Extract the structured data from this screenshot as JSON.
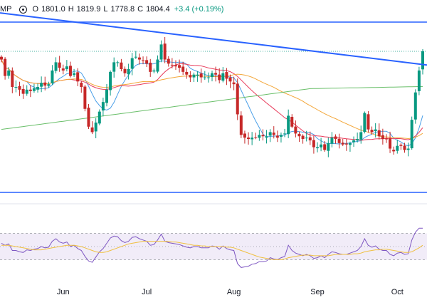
{
  "legend": {
    "symbol": "MP",
    "open_label": "O",
    "open": "1801.0",
    "high_label": "H",
    "high": "1819.9",
    "low_label": "L",
    "low": "1778.8",
    "close_label": "C",
    "close": "1804.4",
    "change": "+3.4 (+0.19%)"
  },
  "colors": {
    "up": "#089981",
    "down": "#c62828",
    "trendline": "#2962ff",
    "ma_fast": "#4a9fe8",
    "ma_mid": "#e83a5a",
    "ma_slow": "#f3a73a",
    "ma_long": "#6abf6a",
    "rsi": "#7e57c2",
    "rsi_ma": "#f0c040",
    "rsi_band": "#ede7f6"
  },
  "chart_data": [
    {
      "type": "candlestick",
      "y_scale": "price",
      "ylim": [
        1700,
        1830
      ],
      "x_labels": [
        "Jun",
        "Jul",
        "Aug",
        "Sep",
        "Oct"
      ],
      "last_candle": {
        "open": 1801.0,
        "high": 1819.9,
        "low": 1778.8,
        "close": 1804.4
      },
      "closes": [
        1798,
        1786,
        1790,
        1778,
        1778,
        1776,
        1773,
        1776,
        1775,
        1777,
        1778,
        1781,
        1779,
        1780,
        1790,
        1796,
        1792,
        1790,
        1793,
        1786,
        1788,
        1782,
        1778,
        1762,
        1749,
        1745,
        1752,
        1760,
        1767,
        1776,
        1789,
        1796,
        1796,
        1791,
        1788,
        1791,
        1799,
        1800,
        1798,
        1797,
        1795,
        1789,
        1790,
        1798,
        1809,
        1798,
        1795,
        1794,
        1793,
        1792,
        1789,
        1787,
        1785,
        1787,
        1787,
        1785,
        1785,
        1785,
        1788,
        1787,
        1783,
        1788,
        1784,
        1782,
        1780,
        1758,
        1743,
        1741,
        1740,
        1741,
        1741,
        1743,
        1742,
        1742,
        1745,
        1743,
        1741,
        1743,
        1744,
        1757,
        1749,
        1744,
        1742,
        1740,
        1741,
        1739,
        1734,
        1734,
        1736,
        1732,
        1737,
        1741,
        1740,
        1737,
        1736,
        1736,
        1737,
        1739,
        1740,
        1745,
        1759,
        1747,
        1745,
        1747,
        1742,
        1740,
        1740,
        1733,
        1731,
        1735,
        1735,
        1732,
        1733,
        1754,
        1774,
        1790,
        1804
      ],
      "highs_pct_note": "values estimated from gridless price pane",
      "trendline": {
        "from": 1832,
        "to": 1794
      },
      "lines": [
        {
          "name": "",
          "role": "fast"
        },
        {
          "name": "",
          "role": "mid"
        },
        {
          "name": "",
          "role": "slow"
        },
        {
          "name": "",
          "role": "long"
        }
      ]
    },
    {
      "type": "line",
      "role": "rsi",
      "ylim": [
        0,
        100
      ],
      "bands": [
        30,
        50,
        70
      ],
      "values": [
        55,
        52,
        54,
        44,
        44,
        42,
        41,
        45,
        44,
        46,
        47,
        50,
        48,
        49,
        58,
        62,
        57,
        55,
        57,
        50,
        52,
        47,
        44,
        35,
        28,
        26,
        34,
        42,
        47,
        55,
        63,
        66,
        65,
        59,
        56,
        58,
        64,
        65,
        62,
        60,
        58,
        52,
        53,
        60,
        69,
        58,
        56,
        55,
        54,
        53,
        51,
        49,
        48,
        50,
        50,
        48,
        48,
        48,
        51,
        50,
        46,
        51,
        47,
        45,
        44,
        24,
        18,
        19,
        20,
        23,
        24,
        27,
        27,
        28,
        33,
        31,
        30,
        33,
        35,
        52,
        44,
        40,
        38,
        36,
        38,
        36,
        32,
        33,
        36,
        33,
        38,
        42,
        41,
        39,
        38,
        38,
        40,
        42,
        44,
        50,
        62,
        52,
        49,
        51,
        46,
        44,
        44,
        38,
        36,
        40,
        41,
        38,
        39,
        60,
        72,
        78,
        78
      ],
      "ma_values": [
        52,
        52,
        52,
        51,
        50,
        49,
        48,
        47,
        46,
        45,
        45,
        45,
        46,
        47,
        48,
        49,
        50,
        51,
        52,
        52,
        52,
        51,
        50,
        48,
        46,
        44,
        42,
        41,
        41,
        42,
        44,
        46,
        48,
        50,
        52,
        54,
        55,
        56,
        57,
        58,
        58,
        58,
        58,
        58,
        58,
        58,
        58,
        57,
        57,
        56,
        55,
        54,
        53,
        52,
        52,
        51,
        51,
        50,
        50,
        50,
        50,
        50,
        49,
        49,
        48,
        46,
        44,
        42,
        40,
        38,
        36,
        34,
        33,
        32,
        31,
        30,
        30,
        30,
        31,
        33,
        34,
        35,
        36,
        37,
        37,
        37,
        36,
        36,
        36,
        36,
        36,
        37,
        38,
        38,
        38,
        38,
        38,
        39,
        39,
        40,
        42,
        43,
        44,
        45,
        45,
        46,
        46,
        45,
        44,
        43,
        42,
        41,
        41,
        42,
        45,
        48,
        52
      ]
    }
  ]
}
